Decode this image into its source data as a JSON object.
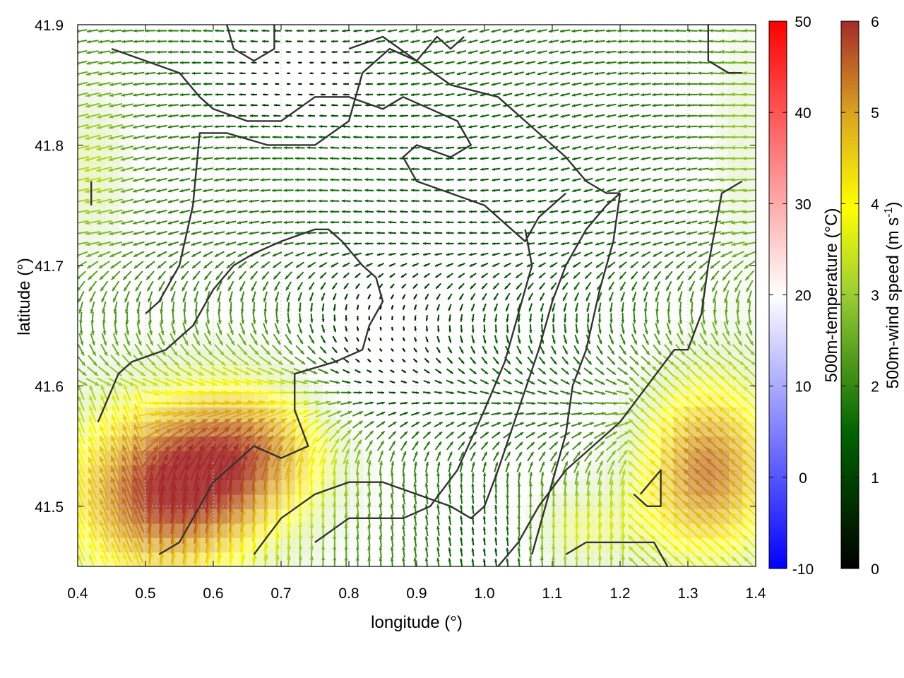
{
  "chart_data": {
    "type": "vector_field",
    "xlabel": "longitude (°)",
    "ylabel": "latitude (°)",
    "xlim": [
      0.4,
      1.4
    ],
    "ylim": [
      41.45,
      41.9
    ],
    "x_ticks": [
      "0.4",
      "0.5",
      "0.6",
      "0.7",
      "0.8",
      "0.9",
      "1.0",
      "1.1",
      "1.2",
      "1.3",
      "1.4"
    ],
    "y_ticks": [
      "41.5",
      "41.6",
      "41.7",
      "41.8",
      "41.9"
    ],
    "grid": true,
    "temperature_colorbar": {
      "label": "500m-temperature (°C)",
      "range": [
        -10,
        50
      ],
      "ticks": [
        "-10",
        "0",
        "10",
        "20",
        "30",
        "40",
        "50"
      ],
      "colors": [
        "#0000ff",
        "#ffffff",
        "#ff0000"
      ]
    },
    "wind_colorbar": {
      "label": "500m-wind speed (m s-1)",
      "label_main": "500m-wind speed (m s",
      "label_sup": "-1",
      "label_end": ")",
      "range": [
        0,
        6
      ],
      "ticks": [
        "0",
        "1",
        "2",
        "3",
        "4",
        "5",
        "6"
      ],
      "colors": [
        "#000000",
        "#006400",
        "#9acd32",
        "#ffff00",
        "#daa520",
        "#a52a2a"
      ]
    },
    "vector_field": {
      "description_free": true,
      "grid_step_deg": 0.017,
      "speed_range": [
        0,
        6
      ]
    },
    "coastlines": [
      [
        [
          0.42,
          41.75
        ],
        [
          0.42,
          41.77
        ]
      ],
      [
        [
          0.5,
          41.66
        ],
        [
          0.52,
          41.67
        ],
        [
          0.55,
          41.7
        ],
        [
          0.57,
          41.75
        ],
        [
          0.58,
          41.81
        ],
        [
          0.62,
          41.81
        ],
        [
          0.68,
          41.8
        ],
        [
          0.75,
          41.8
        ],
        [
          0.8,
          41.82
        ],
        [
          0.82,
          41.86
        ],
        [
          0.86,
          41.88
        ],
        [
          0.9,
          41.87
        ],
        [
          0.95,
          41.85
        ],
        [
          1.02,
          41.84
        ],
        [
          1.08,
          41.81
        ],
        [
          1.12,
          41.79
        ],
        [
          1.15,
          41.77
        ],
        [
          1.18,
          41.76
        ],
        [
          1.2,
          41.76
        ]
      ],
      [
        [
          0.45,
          41.88
        ],
        [
          0.5,
          41.87
        ],
        [
          0.55,
          41.86
        ],
        [
          0.58,
          41.84
        ],
        [
          0.6,
          41.83
        ],
        [
          0.65,
          41.82
        ],
        [
          0.7,
          41.82
        ],
        [
          0.75,
          41.84
        ],
        [
          0.8,
          41.84
        ],
        [
          0.85,
          41.83
        ],
        [
          0.88,
          41.84
        ],
        [
          0.92,
          41.83
        ],
        [
          0.96,
          41.82
        ],
        [
          0.98,
          41.8
        ],
        [
          0.95,
          41.79
        ],
        [
          0.9,
          41.8
        ],
        [
          0.88,
          41.79
        ],
        [
          0.9,
          41.77
        ],
        [
          0.95,
          41.76
        ],
        [
          1.0,
          41.75
        ],
        [
          1.04,
          41.73
        ],
        [
          1.06,
          41.72
        ],
        [
          1.08,
          41.74
        ],
        [
          1.12,
          41.76
        ]
      ],
      [
        [
          0.43,
          41.57
        ],
        [
          0.46,
          41.61
        ],
        [
          0.48,
          41.62
        ],
        [
          0.53,
          41.63
        ],
        [
          0.57,
          41.65
        ],
        [
          0.6,
          41.68
        ],
        [
          0.63,
          41.7
        ],
        [
          0.66,
          41.71
        ],
        [
          0.7,
          41.72
        ],
        [
          0.75,
          41.73
        ],
        [
          0.77,
          41.73
        ],
        [
          0.79,
          41.72
        ],
        [
          0.82,
          41.7
        ],
        [
          0.84,
          41.69
        ],
        [
          0.85,
          41.67
        ],
        [
          0.83,
          41.65
        ],
        [
          0.82,
          41.63
        ],
        [
          0.78,
          41.62
        ],
        [
          0.72,
          41.61
        ],
        [
          0.72,
          41.58
        ],
        [
          0.74,
          41.55
        ],
        [
          0.7,
          41.54
        ],
        [
          0.66,
          41.55
        ],
        [
          0.6,
          41.52
        ],
        [
          0.58,
          41.5
        ],
        [
          0.55,
          41.47
        ],
        [
          0.52,
          41.46
        ]
      ],
      [
        [
          0.66,
          41.46
        ],
        [
          0.7,
          41.49
        ],
        [
          0.75,
          41.51
        ],
        [
          0.8,
          41.52
        ],
        [
          0.85,
          41.52
        ],
        [
          0.9,
          41.51
        ],
        [
          0.95,
          41.5
        ],
        [
          0.98,
          41.49
        ],
        [
          1.0,
          41.5
        ],
        [
          1.02,
          41.53
        ],
        [
          1.05,
          41.58
        ],
        [
          1.08,
          41.63
        ],
        [
          1.1,
          41.67
        ],
        [
          1.12,
          41.7
        ],
        [
          1.15,
          41.73
        ],
        [
          1.18,
          41.75
        ],
        [
          1.2,
          41.76
        ]
      ],
      [
        [
          0.75,
          41.47
        ],
        [
          0.8,
          41.49
        ],
        [
          0.88,
          41.49
        ],
        [
          0.92,
          41.5
        ],
        [
          0.96,
          41.53
        ],
        [
          1.0,
          41.58
        ],
        [
          1.03,
          41.62
        ],
        [
          1.05,
          41.66
        ],
        [
          1.07,
          41.7
        ],
        [
          1.06,
          41.73
        ]
      ],
      [
        [
          1.02,
          41.45
        ],
        [
          1.05,
          41.47
        ],
        [
          1.08,
          41.5
        ],
        [
          1.12,
          41.53
        ],
        [
          1.16,
          41.55
        ],
        [
          1.2,
          41.57
        ],
        [
          1.24,
          41.6
        ],
        [
          1.28,
          41.63
        ],
        [
          1.3,
          41.63
        ],
        [
          1.32,
          41.66
        ],
        [
          1.33,
          41.7
        ],
        [
          1.34,
          41.73
        ],
        [
          1.35,
          41.76
        ],
        [
          1.38,
          41.77
        ]
      ],
      [
        [
          1.2,
          41.76
        ],
        [
          1.19,
          41.72
        ],
        [
          1.17,
          41.68
        ],
        [
          1.15,
          41.63
        ],
        [
          1.13,
          41.6
        ],
        [
          1.12,
          41.56
        ],
        [
          1.1,
          41.52
        ],
        [
          1.08,
          41.48
        ],
        [
          1.07,
          41.46
        ]
      ],
      [
        [
          1.12,
          41.46
        ],
        [
          1.15,
          41.47
        ],
        [
          1.2,
          41.47
        ],
        [
          1.25,
          41.47
        ],
        [
          1.27,
          41.45
        ]
      ],
      [
        [
          1.23,
          41.51
        ],
        [
          1.26,
          41.53
        ],
        [
          1.26,
          41.5
        ],
        [
          1.24,
          41.5
        ],
        [
          1.22,
          41.51
        ]
      ],
      [
        [
          1.33,
          41.9
        ],
        [
          1.33,
          41.87
        ],
        [
          1.36,
          41.86
        ],
        [
          1.38,
          41.86
        ]
      ],
      [
        [
          0.62,
          41.9
        ],
        [
          0.63,
          41.88
        ],
        [
          0.66,
          41.87
        ],
        [
          0.69,
          41.88
        ],
        [
          0.69,
          41.9
        ]
      ],
      [
        [
          0.8,
          41.88
        ],
        [
          0.85,
          41.89
        ],
        [
          0.9,
          41.87
        ],
        [
          0.93,
          41.89
        ],
        [
          0.95,
          41.88
        ],
        [
          0.97,
          41.89
        ]
      ]
    ]
  }
}
